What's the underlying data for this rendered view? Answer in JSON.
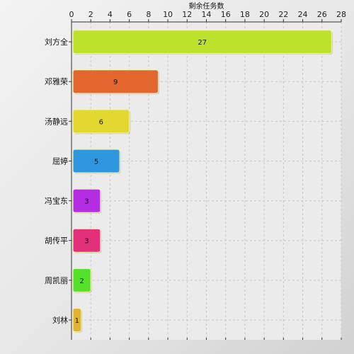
{
  "chart_data": {
    "type": "bar",
    "orientation": "horizontal",
    "xlabel": "剩余任务数",
    "xlim": [
      0,
      28
    ],
    "xticks": [
      0,
      2,
      4,
      6,
      8,
      10,
      12,
      14,
      16,
      18,
      20,
      22,
      24,
      26,
      28
    ],
    "x_axis_position": "top",
    "grid": true,
    "categories": [
      "刘方全",
      "邓雅荣",
      "汤静远",
      "屈婷",
      "冯宝东",
      "胡传平",
      "周凯丽",
      "刘林"
    ],
    "values": [
      27,
      9,
      6,
      5,
      3,
      3,
      2,
      1
    ],
    "colors": [
      "#bde22c",
      "#e4662f",
      "#e3d82f",
      "#2f96e0",
      "#b42de3",
      "#e2307a",
      "#55e02c",
      "#e3b22f"
    ]
  }
}
